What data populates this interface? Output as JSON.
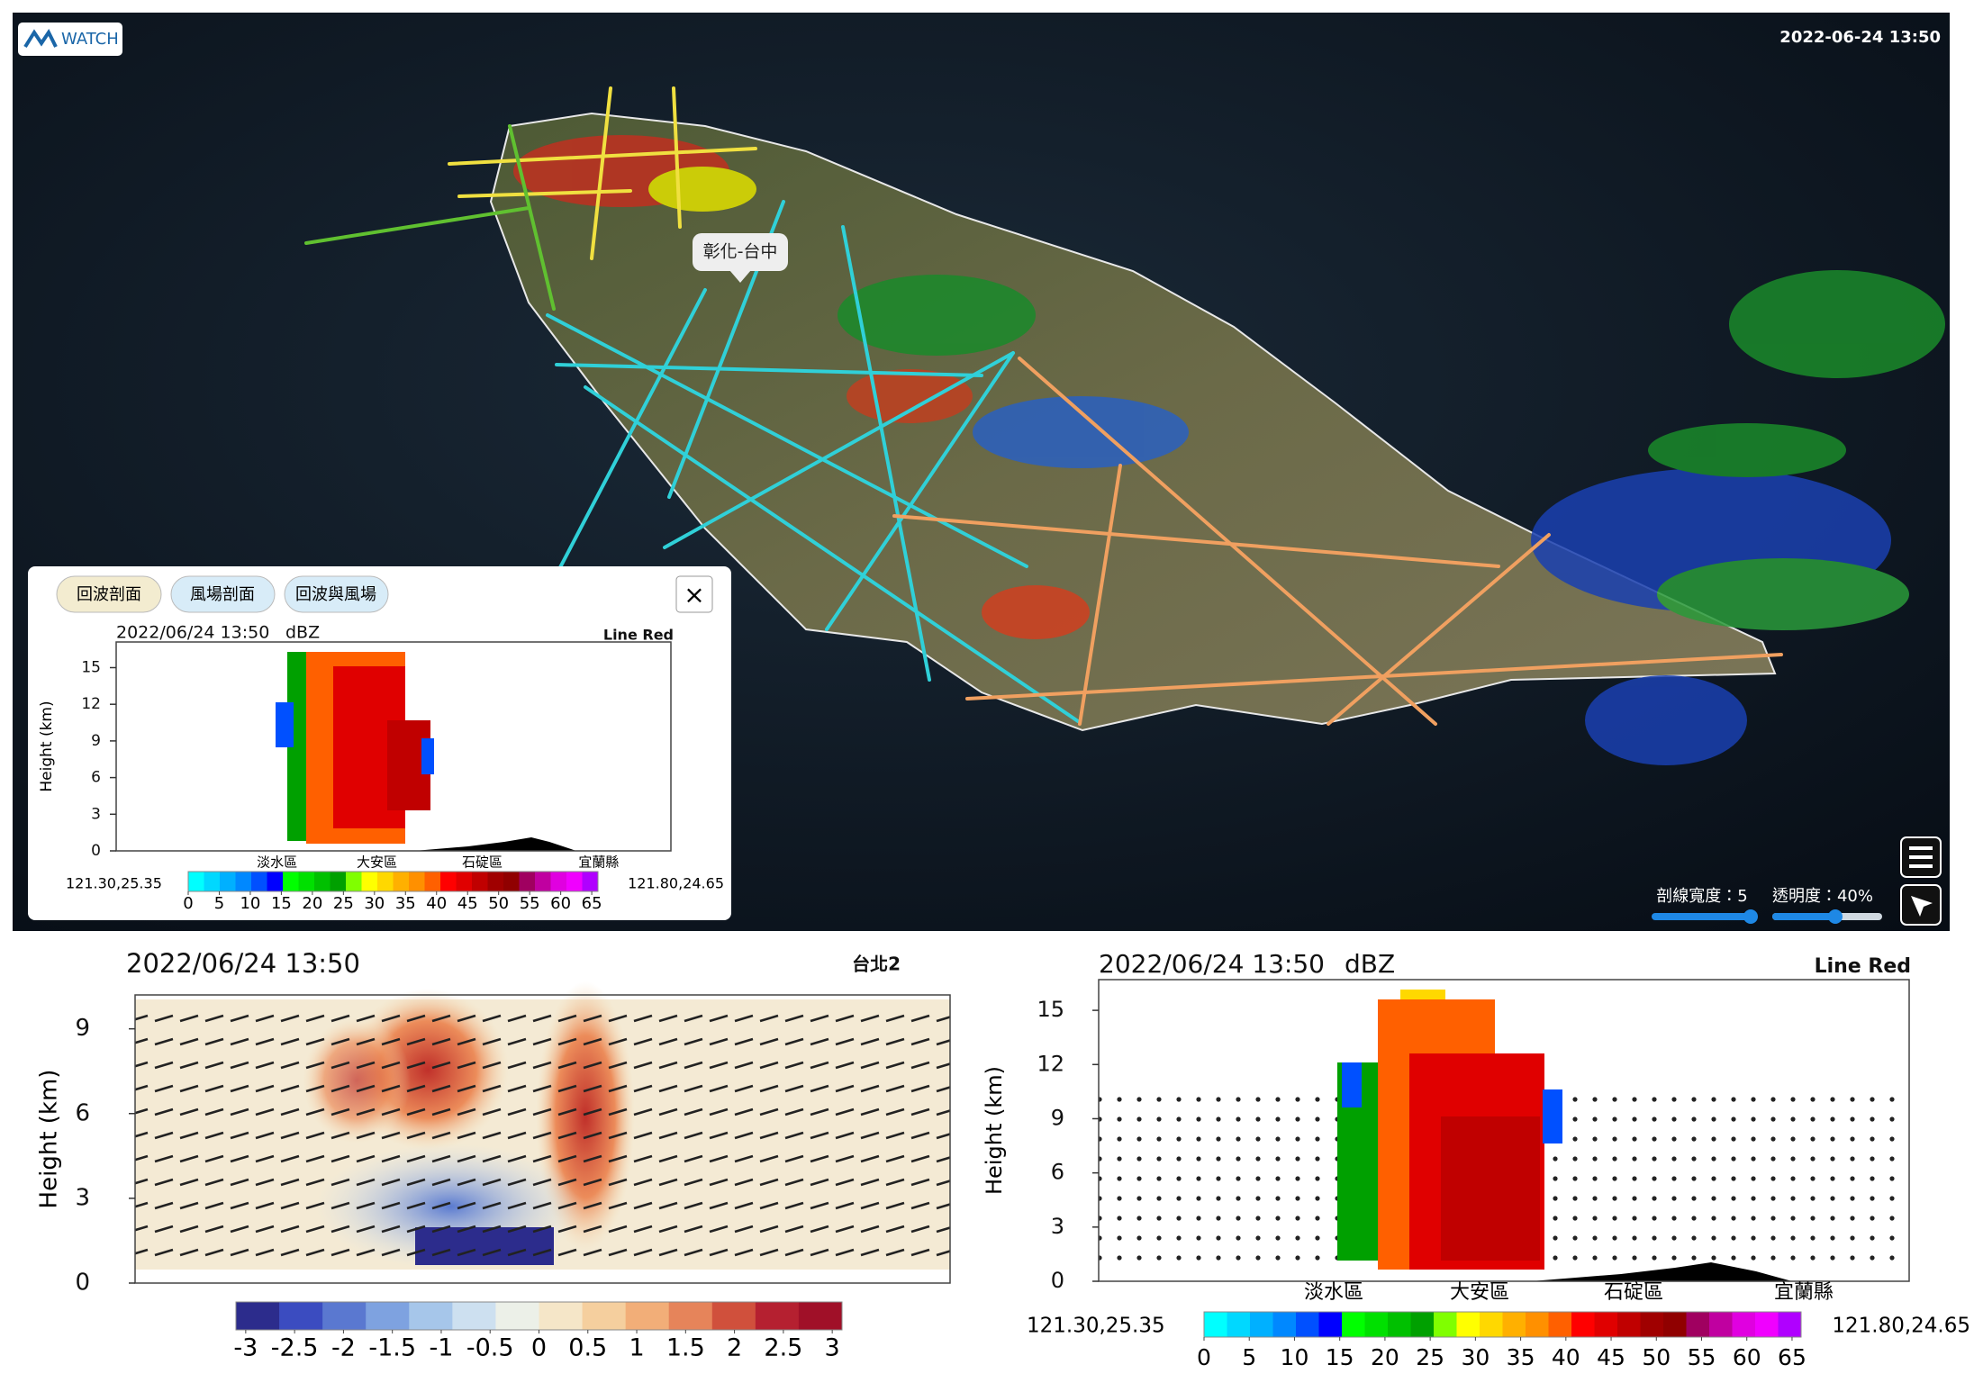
{
  "header": {
    "logo": "WATCH",
    "timestamp": "2022-06-24 13:50"
  },
  "map": {
    "tooltip": "彰化-台中",
    "width_label": "剖線寬度：5",
    "opacity_label": "透明度：40%"
  },
  "panel": {
    "tabs": [
      "回波剖面",
      "風場剖面",
      "回波與風場"
    ],
    "close": "×"
  },
  "chart_data": [
    {
      "type": "heatmap",
      "title": "2022/06/24 13:50",
      "unit": "dBZ",
      "label": "Line Red",
      "ylabel": "Height (km)",
      "ylim": [
        0,
        17.1
      ],
      "yticks": [
        0,
        3,
        6,
        9,
        12,
        15
      ],
      "categories": [
        "淡水區",
        "大安區",
        "石碇區",
        "宜蘭縣"
      ],
      "start": "121.30,25.35",
      "end": "121.80,24.65",
      "colorbar": {
        "lim": [
          0,
          66
        ],
        "ticks": [
          0,
          5,
          10,
          15,
          20,
          25,
          30,
          35,
          40,
          45,
          50,
          55,
          60,
          65
        ],
        "colors": [
          "#00ffff",
          "#00d8ff",
          "#00b0ff",
          "#0088ff",
          "#0050ff",
          "#0000ff",
          "#00ff00",
          "#00e000",
          "#00c000",
          "#00a000",
          "#80ff00",
          "#ffff00",
          "#ffd800",
          "#ffb000",
          "#ff9000",
          "#ff6000",
          "#ff0000",
          "#e00000",
          "#c00000",
          "#a00000",
          "#900000",
          "#a00060",
          "#c000a0",
          "#e000e0",
          "#f000ff",
          "#b000ff"
        ]
      }
    },
    {
      "type": "vector",
      "title": "2022/06/24 13:50",
      "label": "台北2",
      "ylabel": "Height (km)",
      "ylim": [
        0,
        10.2
      ],
      "yticks": [
        0,
        3,
        6,
        9
      ],
      "colorbar": {
        "lim": [
          -3.1,
          3.1
        ],
        "ticks": [
          -3,
          -2.5,
          -2,
          -1.5,
          -1,
          -0.5,
          0,
          0.5,
          1,
          1.5,
          2,
          2.5,
          3
        ],
        "colors": [
          "#2c2c8c",
          "#3b4cc0",
          "#5a78d0",
          "#7ea2e0",
          "#a6c6ea",
          "#cde0f0",
          "#ecf0e8",
          "#f5e6c8",
          "#f5cf9e",
          "#f2ae78",
          "#e6845a",
          "#d0503c",
          "#b52030",
          "#a01028"
        ]
      }
    },
    {
      "type": "heatmap",
      "title": "2022/06/24 13:50",
      "unit": "dBZ",
      "label": "Line Red",
      "ylabel": "Height (km)",
      "ylim": [
        0,
        16.7
      ],
      "yticks": [
        0,
        3,
        6,
        9,
        12,
        15
      ],
      "categories": [
        "淡水區",
        "大安區",
        "石碇區",
        "宜蘭縣"
      ],
      "start": "121.30,25.35",
      "end": "121.80,24.65",
      "colorbar": {
        "lim": [
          0,
          66
        ],
        "ticks": [
          0,
          5,
          10,
          15,
          20,
          25,
          30,
          35,
          40,
          45,
          50,
          55,
          60,
          65
        ],
        "colors": [
          "#00ffff",
          "#00d8ff",
          "#00b0ff",
          "#0088ff",
          "#0050ff",
          "#0000ff",
          "#00ff00",
          "#00e000",
          "#00c000",
          "#00a000",
          "#80ff00",
          "#ffff00",
          "#ffd800",
          "#ffb000",
          "#ff9000",
          "#ff6000",
          "#ff0000",
          "#e00000",
          "#c00000",
          "#a00000",
          "#900000",
          "#a00060",
          "#c000a0",
          "#e000e0",
          "#f000ff",
          "#b000ff"
        ]
      }
    }
  ]
}
